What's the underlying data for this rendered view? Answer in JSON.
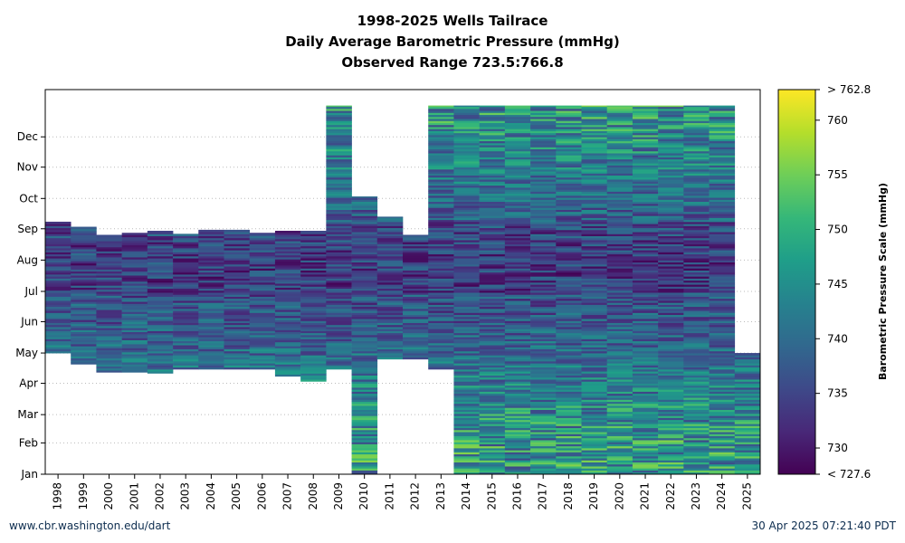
{
  "chart_data": {
    "type": "heatmap",
    "title": "1998-2025 Wells Tailrace",
    "subtitle": "Daily Average Barometric Pressure (mmHg)",
    "range_label": "Observed Range 723.5:766.8",
    "xlabel": "",
    "ylabel": "",
    "x": [
      "1998",
      "1999",
      "2000",
      "2001",
      "2002",
      "2003",
      "2004",
      "2005",
      "2006",
      "2007",
      "2008",
      "2009",
      "2010",
      "2011",
      "2012",
      "2013",
      "2014",
      "2015",
      "2016",
      "2017",
      "2018",
      "2019",
      "2020",
      "2021",
      "2022",
      "2023",
      "2024",
      "2025"
    ],
    "y_ticks": [
      "Jan",
      "Feb",
      "Mar",
      "Apr",
      "May",
      "Jun",
      "Jul",
      "Aug",
      "Sep",
      "Oct",
      "Nov",
      "Dec"
    ],
    "grid": true,
    "colorbar": {
      "label": "Barometric Pressure Scale (mmHg)",
      "min": 727.6,
      "max": 762.8,
      "min_label": "< 727.6",
      "max_label": "> 762.8",
      "ticks": [
        "730",
        "735",
        "740",
        "745",
        "750",
        "755",
        "760"
      ],
      "colors": [
        "#440154",
        "#482878",
        "#3e4989",
        "#31688e",
        "#26828e",
        "#1f9e89",
        "#35b779",
        "#6ece58",
        "#b5de2b",
        "#fde725"
      ]
    },
    "coverage_doy": [
      {
        "year": "1998",
        "start": 121,
        "end": 250
      },
      {
        "year": "1999",
        "start": 110,
        "end": 245
      },
      {
        "year": "2000",
        "start": 102,
        "end": 237
      },
      {
        "year": "2001",
        "start": 102,
        "end": 239
      },
      {
        "year": "2002",
        "start": 101,
        "end": 241
      },
      {
        "year": "2003",
        "start": 105,
        "end": 238
      },
      {
        "year": "2004",
        "start": 105,
        "end": 242
      },
      {
        "year": "2005",
        "start": 105,
        "end": 242
      },
      {
        "year": "2006",
        "start": 105,
        "end": 239
      },
      {
        "year": "2007",
        "start": 98,
        "end": 241
      },
      {
        "year": "2008",
        "start": 93,
        "end": 241
      },
      {
        "year": "2009",
        "start": 105,
        "end": 365
      },
      {
        "year": "2010",
        "start": 1,
        "end": 275
      },
      {
        "year": "2011",
        "start": 115,
        "end": 255
      },
      {
        "year": "2012",
        "start": 115,
        "end": 237
      },
      {
        "year": "2013",
        "start": 105,
        "end": 365
      },
      {
        "year": "2014",
        "start": 1,
        "end": 365
      },
      {
        "year": "2015",
        "start": 1,
        "end": 365
      },
      {
        "year": "2016",
        "start": 1,
        "end": 365
      },
      {
        "year": "2017",
        "start": 1,
        "end": 365
      },
      {
        "year": "2018",
        "start": 1,
        "end": 365
      },
      {
        "year": "2019",
        "start": 1,
        "end": 365
      },
      {
        "year": "2020",
        "start": 1,
        "end": 365
      },
      {
        "year": "2021",
        "start": 1,
        "end": 365
      },
      {
        "year": "2022",
        "start": 1,
        "end": 365
      },
      {
        "year": "2023",
        "start": 1,
        "end": 365
      },
      {
        "year": "2024",
        "start": 1,
        "end": 365
      },
      {
        "year": "2025",
        "start": 1,
        "end": 120
      }
    ]
  },
  "footer": {
    "left": "www.cbr.washington.edu/dart",
    "right": "30 Apr 2025 07:21:40 PDT"
  }
}
